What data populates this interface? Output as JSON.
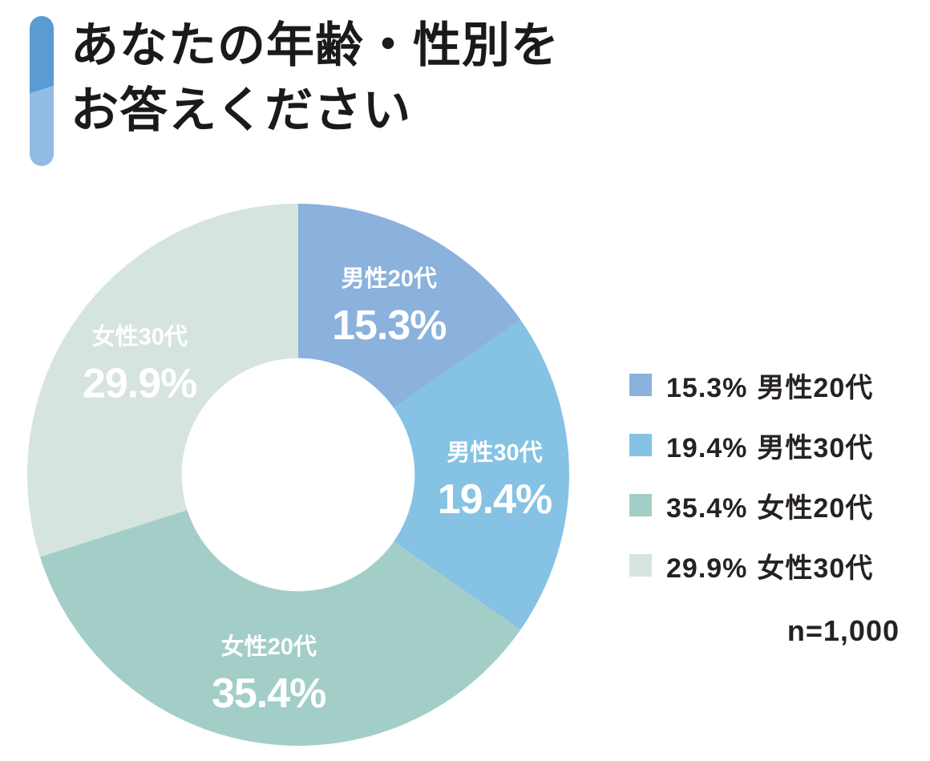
{
  "page": {
    "background": "#ffffff"
  },
  "header": {
    "accent_bar": {
      "top_color": "#5b9bd3",
      "bottom_color": "#92bce4"
    },
    "title_line1": "あなたの年齢・性別を",
    "title_line2": "お答えください"
  },
  "chart_data": {
    "type": "pie",
    "subtype": "donut",
    "title": "あなたの年齢・性別をお答えください",
    "categories": [
      "男性20代",
      "男性30代",
      "女性20代",
      "女性30代"
    ],
    "values": [
      15.3,
      19.4,
      35.4,
      29.9
    ],
    "value_labels": [
      "15.3%",
      "19.4%",
      "35.4%",
      "29.9%"
    ],
    "colors": [
      "#8bb1dd",
      "#85c2e3",
      "#a3cec8",
      "#d6e4e0"
    ],
    "start_angle_deg": 0,
    "direction": "clockwise",
    "inner_radius_ratio": 0.43,
    "label_text_color": "#ffffff",
    "legend_position": "right",
    "sample_size_label": "n=1,000"
  },
  "legend": {
    "items": [
      {
        "pct": "15.3%",
        "label": "男性20代",
        "color": "#8bb1dd"
      },
      {
        "pct": "19.4%",
        "label": "男性30代",
        "color": "#85c2e3"
      },
      {
        "pct": "35.4%",
        "label": "女性20代",
        "color": "#a3cec8"
      },
      {
        "pct": "29.9%",
        "label": "女性30代",
        "color": "#d6e4e0"
      }
    ],
    "note": "n=1,000"
  }
}
